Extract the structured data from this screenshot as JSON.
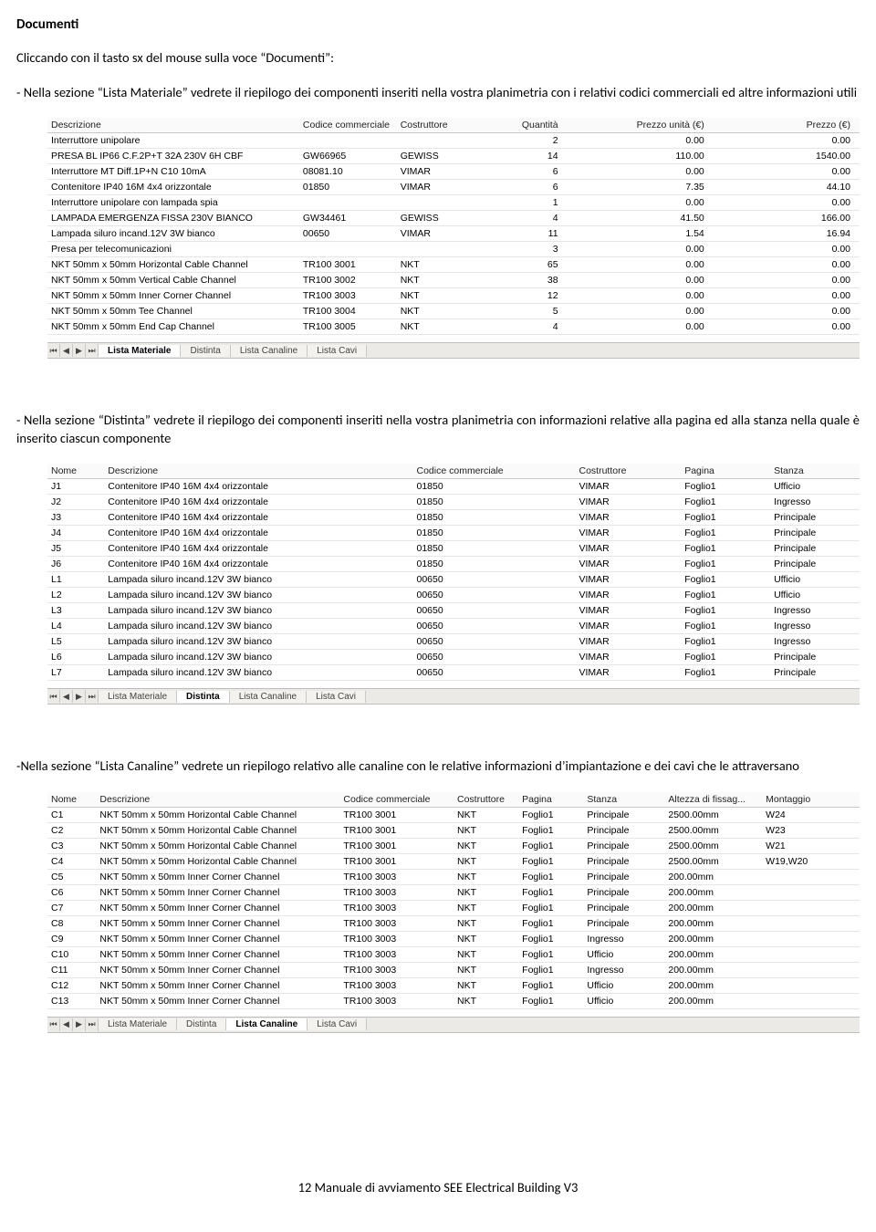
{
  "title": "Documenti",
  "intro1": "Cliccando con il tasto sx del mouse sulla voce “Documenti”:",
  "para1": "- Nella sezione “Lista Materiale” vedrete il riepilogo dei componenti inseriti nella vostra planimetria con i relativi codici commerciali ed altre informazioni utili",
  "para2": "- Nella sezione “Distinta” vedrete il riepilogo dei componenti inseriti nella vostra planimetria con informazioni relative alla pagina ed alla stanza nella quale è inserito ciascun componente",
  "para3": "-Nella sezione “Lista Canaline” vedrete un riepilogo relativo alle canaline con le relative informazioni d’impiantazione e dei cavi che le attraversano",
  "footer": "12  Manuale di avviamento SEE Electrical Building V3",
  "t1": {
    "headers": [
      "Descrizione",
      "Codice commerciale",
      "Costruttore",
      "Quantità",
      "Prezzo unità (€)",
      "Prezzo (€)"
    ],
    "colw": [
      "31%",
      "12%",
      "10%",
      "11%",
      "18%",
      "18%"
    ],
    "rows": [
      [
        "Interruttore unipolare",
        "",
        "",
        "2",
        "0.00",
        "0.00"
      ],
      [
        "PRESA BL IP66 C.F.2P+T 32A 230V 6H CBF",
        "GW66965",
        "GEWISS",
        "14",
        "110.00",
        "1540.00"
      ],
      [
        "Interruttore MT Diff.1P+N C10 10mA",
        "08081.10",
        "VIMAR",
        "6",
        "0.00",
        "0.00"
      ],
      [
        "Contenitore IP40 16M 4x4 orizzontale",
        "01850",
        "VIMAR",
        "6",
        "7.35",
        "44.10"
      ],
      [
        "Interruttore unipolare con lampada spia",
        "",
        "",
        "1",
        "0.00",
        "0.00"
      ],
      [
        "LAMPADA EMERGENZA FISSA 230V BIANCO",
        "GW34461",
        "GEWISS",
        "4",
        "41.50",
        "166.00"
      ],
      [
        "Lampada siluro incand.12V 3W bianco",
        "00650",
        "VIMAR",
        "11",
        "1.54",
        "16.94"
      ],
      [
        "Presa per telecomunicazioni",
        "",
        "",
        "3",
        "0.00",
        "0.00"
      ],
      [
        "NKT 50mm x 50mm Horizontal Cable Channel",
        "TR100 3001",
        "NKT",
        "65",
        "0.00",
        "0.00"
      ],
      [
        "NKT 50mm x 50mm Vertical Cable Channel",
        "TR100 3002",
        "NKT",
        "38",
        "0.00",
        "0.00"
      ],
      [
        "NKT 50mm x 50mm Inner Corner Channel",
        "TR100 3003",
        "NKT",
        "12",
        "0.00",
        "0.00"
      ],
      [
        "NKT 50mm x 50mm Tee Channel",
        "TR100 3004",
        "NKT",
        "5",
        "0.00",
        "0.00"
      ],
      [
        "NKT 50mm x 50mm End Cap Channel",
        "TR100 3005",
        "NKT",
        "4",
        "0.00",
        "0.00"
      ]
    ]
  },
  "t2": {
    "headers": [
      "Nome",
      "Descrizione",
      "Codice commerciale",
      "Costruttore",
      "Pagina",
      "Stanza"
    ],
    "colw": [
      "7%",
      "38%",
      "20%",
      "13%",
      "11%",
      "11%"
    ],
    "rows": [
      [
        "J1",
        "Contenitore IP40 16M 4x4 orizzontale",
        "01850",
        "VIMAR",
        "Foglio1",
        "Ufficio"
      ],
      [
        "J2",
        "Contenitore IP40 16M 4x4 orizzontale",
        "01850",
        "VIMAR",
        "Foglio1",
        "Ingresso"
      ],
      [
        "J3",
        "Contenitore IP40 16M 4x4 orizzontale",
        "01850",
        "VIMAR",
        "Foglio1",
        "Principale"
      ],
      [
        "J4",
        "Contenitore IP40 16M 4x4 orizzontale",
        "01850",
        "VIMAR",
        "Foglio1",
        "Principale"
      ],
      [
        "J5",
        "Contenitore IP40 16M 4x4 orizzontale",
        "01850",
        "VIMAR",
        "Foglio1",
        "Principale"
      ],
      [
        "J6",
        "Contenitore IP40 16M 4x4 orizzontale",
        "01850",
        "VIMAR",
        "Foglio1",
        "Principale"
      ],
      [
        "L1",
        "Lampada siluro incand.12V 3W bianco",
        "00650",
        "VIMAR",
        "Foglio1",
        "Ufficio"
      ],
      [
        "L2",
        "Lampada siluro incand.12V 3W bianco",
        "00650",
        "VIMAR",
        "Foglio1",
        "Ufficio"
      ],
      [
        "L3",
        "Lampada siluro incand.12V 3W bianco",
        "00650",
        "VIMAR",
        "Foglio1",
        "Ingresso"
      ],
      [
        "L4",
        "Lampada siluro incand.12V 3W bianco",
        "00650",
        "VIMAR",
        "Foglio1",
        "Ingresso"
      ],
      [
        "L5",
        "Lampada siluro incand.12V 3W bianco",
        "00650",
        "VIMAR",
        "Foglio1",
        "Ingresso"
      ],
      [
        "L6",
        "Lampada siluro incand.12V 3W bianco",
        "00650",
        "VIMAR",
        "Foglio1",
        "Principale"
      ],
      [
        "L7",
        "Lampada siluro incand.12V 3W bianco",
        "00650",
        "VIMAR",
        "Foglio1",
        "Principale"
      ]
    ]
  },
  "t3": {
    "headers": [
      "Nome",
      "Descrizione",
      "Codice commerciale",
      "Costruttore",
      "Pagina",
      "Stanza",
      "Altezza di fissag...",
      "Montaggio"
    ],
    "colw": [
      "6%",
      "30%",
      "14%",
      "8%",
      "8%",
      "10%",
      "12%",
      "12%"
    ],
    "rows": [
      [
        "C1",
        "NKT 50mm x 50mm Horizontal Cable Channel",
        "TR100 3001",
        "NKT",
        "Foglio1",
        "Principale",
        "2500.00mm",
        "W24"
      ],
      [
        "C2",
        "NKT 50mm x 50mm Horizontal Cable Channel",
        "TR100 3001",
        "NKT",
        "Foglio1",
        "Principale",
        "2500.00mm",
        "W23"
      ],
      [
        "C3",
        "NKT 50mm x 50mm Horizontal Cable Channel",
        "TR100 3001",
        "NKT",
        "Foglio1",
        "Principale",
        "2500.00mm",
        "W21"
      ],
      [
        "C4",
        "NKT 50mm x 50mm Horizontal Cable Channel",
        "TR100 3001",
        "NKT",
        "Foglio1",
        "Principale",
        "2500.00mm",
        "W19,W20"
      ],
      [
        "C5",
        "NKT 50mm x 50mm Inner Corner Channel",
        "TR100 3003",
        "NKT",
        "Foglio1",
        "Principale",
        "200.00mm",
        ""
      ],
      [
        "C6",
        "NKT 50mm x 50mm Inner Corner Channel",
        "TR100 3003",
        "NKT",
        "Foglio1",
        "Principale",
        "200.00mm",
        ""
      ],
      [
        "C7",
        "NKT 50mm x 50mm Inner Corner Channel",
        "TR100 3003",
        "NKT",
        "Foglio1",
        "Principale",
        "200.00mm",
        ""
      ],
      [
        "C8",
        "NKT 50mm x 50mm Inner Corner Channel",
        "TR100 3003",
        "NKT",
        "Foglio1",
        "Principale",
        "200.00mm",
        ""
      ],
      [
        "C9",
        "NKT 50mm x 50mm Inner Corner Channel",
        "TR100 3003",
        "NKT",
        "Foglio1",
        "Ingresso",
        "200.00mm",
        ""
      ],
      [
        "C10",
        "NKT 50mm x 50mm Inner Corner Channel",
        "TR100 3003",
        "NKT",
        "Foglio1",
        "Ufficio",
        "200.00mm",
        ""
      ],
      [
        "C11",
        "NKT 50mm x 50mm Inner Corner Channel",
        "TR100 3003",
        "NKT",
        "Foglio1",
        "Ingresso",
        "200.00mm",
        ""
      ],
      [
        "C12",
        "NKT 50mm x 50mm Inner Corner Channel",
        "TR100 3003",
        "NKT",
        "Foglio1",
        "Ufficio",
        "200.00mm",
        ""
      ],
      [
        "C13",
        "NKT 50mm x 50mm Inner Corner Channel",
        "TR100 3003",
        "NKT",
        "Foglio1",
        "Ufficio",
        "200.00mm",
        ""
      ]
    ]
  },
  "tabs": {
    "items": [
      "Lista Materiale",
      "Distinta",
      "Lista Canaline",
      "Lista Cavi"
    ],
    "active": [
      0,
      1,
      2
    ]
  }
}
